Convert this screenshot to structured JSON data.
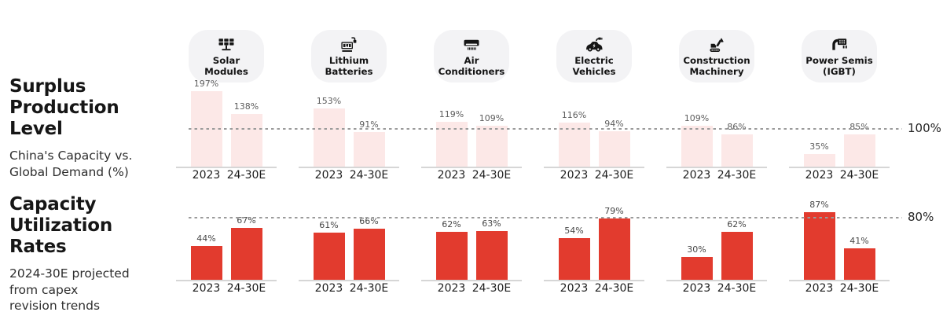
{
  "left": {
    "surplus": {
      "title_lines": [
        "Surplus",
        "Production Level"
      ],
      "subtitle_lines": [
        "China's Capacity vs.",
        "Global Demand (%)"
      ]
    },
    "utilization": {
      "title_lines": [
        "Capacity",
        "Utilization Rates"
      ],
      "subtitle_lines": [
        "2024-30E projected",
        "from capex",
        "revision trends"
      ]
    }
  },
  "rows": {
    "surplus": {
      "ref_label": "100%",
      "ref_value": 100
    },
    "utilization": {
      "ref_label": "80%",
      "ref_value": 80
    }
  },
  "x_labels": [
    "2023",
    "24-30E"
  ],
  "colors": {
    "surplus_bar": "#fce8e7",
    "utilization_bar": "#e23b2e",
    "icon_pill_bg": "#f3f3f5",
    "reference_line": "#9b9b9b"
  },
  "industries": [
    {
      "id": "solar-modules",
      "label_lines": [
        "Solar",
        "Modules"
      ],
      "icon": "solar-panel-icon",
      "surplus": [
        197,
        138
      ],
      "utilization": [
        44,
        67
      ]
    },
    {
      "id": "lithium-batteries",
      "label_lines": [
        "Lithium",
        "Batteries"
      ],
      "icon": "lithium-battery-icon",
      "surplus": [
        153,
        91
      ],
      "utilization": [
        61,
        66
      ]
    },
    {
      "id": "air-conditioners",
      "label_lines": [
        "Air",
        "Conditioners"
      ],
      "icon": "air-conditioner-icon",
      "surplus": [
        119,
        109
      ],
      "utilization": [
        62,
        63
      ]
    },
    {
      "id": "electric-vehicles",
      "label_lines": [
        "Electric",
        "Vehicles"
      ],
      "icon": "electric-car-icon",
      "surplus": [
        116,
        94
      ],
      "utilization": [
        54,
        79
      ]
    },
    {
      "id": "construction-machinery",
      "label_lines": [
        "Construction",
        "Machinery"
      ],
      "icon": "excavator-icon",
      "surplus": [
        109,
        86
      ],
      "utilization": [
        30,
        62
      ]
    },
    {
      "id": "power-semis",
      "label_lines": [
        "Power Semis",
        "(IGBT)"
      ],
      "icon": "power-chip-icon",
      "surplus": [
        35,
        85
      ],
      "utilization": [
        87,
        41
      ]
    }
  ],
  "chart_data": [
    {
      "type": "bar",
      "title": "Surplus Production Level",
      "subtitle": "China's Capacity vs. Global Demand (%)",
      "categories": [
        "Solar Modules",
        "Lithium Batteries",
        "Air Conditioners",
        "Electric Vehicles",
        "Construction Machinery",
        "Power Semis (IGBT)"
      ],
      "x_labels_per_group": [
        "2023",
        "24-30E"
      ],
      "series": [
        {
          "name": "2023",
          "values": [
            197,
            153,
            119,
            116,
            109,
            35
          ]
        },
        {
          "name": "24-30E",
          "values": [
            138,
            91,
            109,
            94,
            86,
            85
          ]
        }
      ],
      "unit": "%",
      "reference_line": {
        "value": 100,
        "label": "100%"
      },
      "bar_color": "#fce8e7",
      "grid": false,
      "legend_position": "none"
    },
    {
      "type": "bar",
      "title": "Capacity Utilization Rates",
      "subtitle": "2024-30E projected from capex revision trends",
      "categories": [
        "Solar Modules",
        "Lithium Batteries",
        "Air Conditioners",
        "Electric Vehicles",
        "Construction Machinery",
        "Power Semis (IGBT)"
      ],
      "x_labels_per_group": [
        "2023",
        "24-30E"
      ],
      "series": [
        {
          "name": "2023",
          "values": [
            44,
            61,
            62,
            54,
            30,
            87
          ]
        },
        {
          "name": "24-30E",
          "values": [
            67,
            66,
            63,
            79,
            62,
            41
          ]
        }
      ],
      "unit": "%",
      "reference_line": {
        "value": 80,
        "label": "80%"
      },
      "bar_color": "#e23b2e",
      "grid": false,
      "legend_position": "none"
    }
  ]
}
